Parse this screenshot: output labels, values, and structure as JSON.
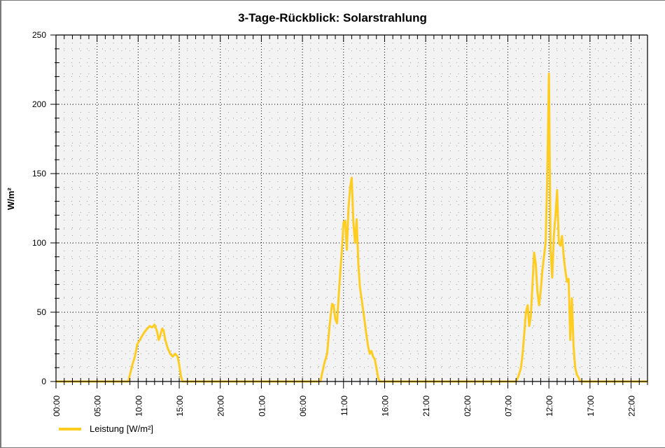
{
  "chart_data": {
    "type": "line",
    "title": "3-Tage-Rückblick: Solarstrahlung",
    "xlabel": "",
    "ylabel": "W/m²",
    "ylim": [
      0,
      250
    ],
    "yticks": [
      0,
      50,
      100,
      150,
      200,
      250
    ],
    "xlim_hours": [
      0,
      72
    ],
    "xtick_labels": [
      "00:00",
      "05:00",
      "10:00",
      "15:00",
      "20:00",
      "01:00",
      "06:00",
      "11:00",
      "16:00",
      "21:00",
      "02:00",
      "07:00",
      "12:00",
      "17:00",
      "22:00"
    ],
    "grid": true,
    "legend_position": "bottom-left",
    "series": [
      {
        "name": "Leistung [W/m²]",
        "color": "#ffcc22",
        "points": [
          [
            0,
            0
          ],
          [
            8.8,
            0
          ],
          [
            9.0,
            5
          ],
          [
            9.3,
            12
          ],
          [
            9.6,
            18
          ],
          [
            9.9,
            27
          ],
          [
            10.2,
            30
          ],
          [
            10.5,
            33
          ],
          [
            10.8,
            36
          ],
          [
            11.1,
            38
          ],
          [
            11.4,
            40
          ],
          [
            11.7,
            39
          ],
          [
            12.0,
            41
          ],
          [
            12.3,
            36
          ],
          [
            12.5,
            30
          ],
          [
            12.7,
            33
          ],
          [
            12.9,
            38
          ],
          [
            13.1,
            37
          ],
          [
            13.3,
            30
          ],
          [
            13.6,
            24
          ],
          [
            13.9,
            20
          ],
          [
            14.2,
            18
          ],
          [
            14.5,
            20
          ],
          [
            14.8,
            18
          ],
          [
            15.0,
            12
          ],
          [
            15.2,
            4
          ],
          [
            15.4,
            0
          ],
          [
            32.2,
            0
          ],
          [
            32.4,
            6
          ],
          [
            32.7,
            14
          ],
          [
            33.0,
            20
          ],
          [
            33.3,
            40
          ],
          [
            33.6,
            56
          ],
          [
            33.8,
            55
          ],
          [
            34.0,
            45
          ],
          [
            34.2,
            42
          ],
          [
            34.5,
            70
          ],
          [
            34.8,
            95
          ],
          [
            35.0,
            115
          ],
          [
            35.2,
            116
          ],
          [
            35.4,
            95
          ],
          [
            35.6,
            125
          ],
          [
            35.8,
            140
          ],
          [
            36.0,
            147
          ],
          [
            36.2,
            115
          ],
          [
            36.4,
            100
          ],
          [
            36.6,
            117
          ],
          [
            36.8,
            85
          ],
          [
            37.0,
            68
          ],
          [
            37.3,
            55
          ],
          [
            37.6,
            42
          ],
          [
            37.8,
            33
          ],
          [
            38.0,
            25
          ],
          [
            38.2,
            20
          ],
          [
            38.4,
            22
          ],
          [
            38.6,
            18
          ],
          [
            38.8,
            16
          ],
          [
            39.0,
            10
          ],
          [
            39.2,
            3
          ],
          [
            39.4,
            0
          ],
          [
            56.0,
            0
          ],
          [
            56.3,
            4
          ],
          [
            56.6,
            10
          ],
          [
            56.8,
            20
          ],
          [
            57.0,
            35
          ],
          [
            57.2,
            50
          ],
          [
            57.4,
            55
          ],
          [
            57.6,
            40
          ],
          [
            57.8,
            47
          ],
          [
            58.0,
            70
          ],
          [
            58.2,
            93
          ],
          [
            58.4,
            85
          ],
          [
            58.6,
            65
          ],
          [
            58.8,
            55
          ],
          [
            59.0,
            65
          ],
          [
            59.2,
            80
          ],
          [
            59.4,
            90
          ],
          [
            59.6,
            100
          ],
          [
            59.8,
            148
          ],
          [
            60.0,
            222
          ],
          [
            60.2,
            95
          ],
          [
            60.4,
            75
          ],
          [
            60.6,
            105
          ],
          [
            60.8,
            120
          ],
          [
            61.0,
            138
          ],
          [
            61.2,
            100
          ],
          [
            61.4,
            98
          ],
          [
            61.6,
            105
          ],
          [
            61.8,
            90
          ],
          [
            62.0,
            80
          ],
          [
            62.2,
            72
          ],
          [
            62.4,
            74
          ],
          [
            62.6,
            30
          ],
          [
            62.8,
            60
          ],
          [
            63.0,
            25
          ],
          [
            63.2,
            10
          ],
          [
            63.4,
            5
          ],
          [
            63.6,
            3
          ],
          [
            63.8,
            0
          ],
          [
            72,
            0
          ]
        ]
      }
    ]
  },
  "legend": {
    "label": "Leistung [W/m²]"
  }
}
